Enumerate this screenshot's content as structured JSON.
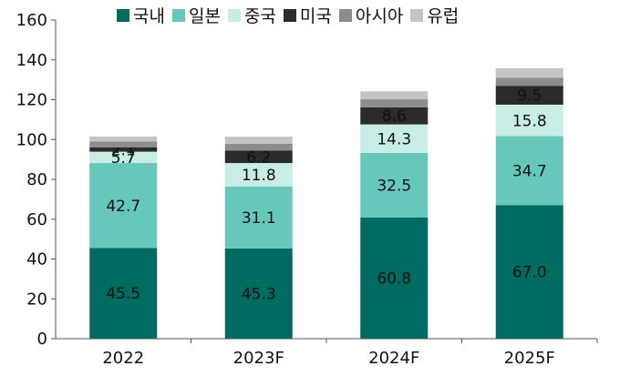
{
  "chart_data": {
    "type": "bar",
    "stacked": true,
    "categories": [
      "2022",
      "2023F",
      "2024F",
      "2025F"
    ],
    "ylim": [
      0,
      160
    ],
    "yticks": [
      "0",
      "20",
      "40",
      "60",
      "80",
      "100",
      "120",
      "140",
      "160"
    ],
    "legend_position": "top",
    "series": [
      {
        "name": "국내",
        "color": "#006b60",
        "values": [
          45.5,
          45.3,
          60.8,
          67.0
        ],
        "labels": [
          "45.5",
          "45.3",
          "60.8",
          "67.0"
        ]
      },
      {
        "name": "일본",
        "color": "#66c8bb",
        "values": [
          42.7,
          31.1,
          32.5,
          34.7
        ],
        "labels": [
          "42.7",
          "31.1",
          "32.5",
          "34.7"
        ]
      },
      {
        "name": "중국",
        "color": "#c8ece6",
        "values": [
          5.7,
          11.8,
          14.3,
          15.8
        ],
        "labels": [
          "5.7",
          "11.8",
          "14.3",
          "15.8"
        ]
      },
      {
        "name": "미국",
        "color": "#2b2b2b",
        "values": [
          2.1,
          6.2,
          8.6,
          9.5
        ],
        "labels": [
          "2.1",
          "6.2",
          "8.6",
          "9.5"
        ]
      },
      {
        "name": "아시아",
        "color": "#8c8c8c",
        "values": [
          3.0,
          3.5,
          4.0,
          4.0
        ],
        "labels": [
          "",
          "",
          "",
          ""
        ]
      },
      {
        "name": "유럽",
        "color": "#c4c4c4",
        "values": [
          2.5,
          3.5,
          4.0,
          4.8
        ],
        "labels": [
          "",
          "",
          "",
          ""
        ]
      }
    ]
  }
}
